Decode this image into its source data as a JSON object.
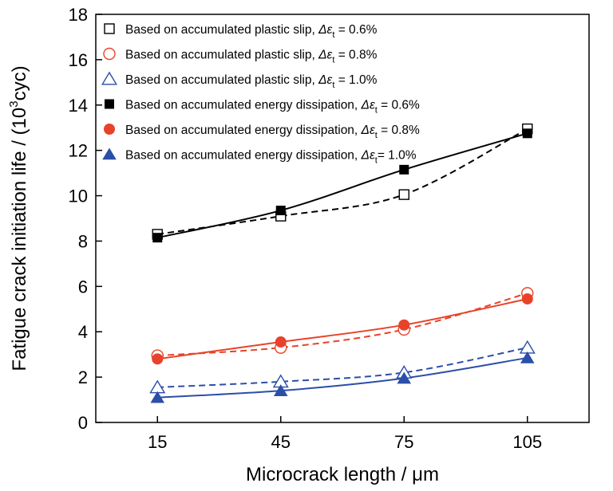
{
  "chart_data": {
    "type": "scatter",
    "xlabel": "Microcrack length / μm",
    "ylabel_prefix": "Fatigue crack initiation life / (10",
    "ylabel_exp": "3",
    "ylabel_suffix": "cyc)",
    "xlim": [
      0,
      120
    ],
    "ylim": [
      0,
      18
    ],
    "xticks": [
      15,
      45,
      75,
      105
    ],
    "yticks": [
      0,
      2,
      4,
      6,
      8,
      10,
      12,
      14,
      16,
      18
    ],
    "grid": false,
    "legend_position": "top-left",
    "series": [
      {
        "legend_prefix": "Based on accumulated plastic slip, ",
        "legend_delta": "Δε",
        "legend_sub": "t",
        "legend_value": " = 0.6%",
        "marker": "square",
        "filled": false,
        "color": "#000000",
        "line_style": "dashed",
        "x": [
          15,
          45,
          75,
          105
        ],
        "y": [
          8.3,
          9.1,
          10.05,
          12.95
        ]
      },
      {
        "legend_prefix": "Based on accumulated plastic slip, ",
        "legend_delta": "Δε",
        "legend_sub": "t",
        "legend_value": " = 0.8%",
        "marker": "circle",
        "filled": false,
        "color": "#e8432a",
        "line_style": "dashed",
        "x": [
          15,
          45,
          75,
          105
        ],
        "y": [
          2.95,
          3.3,
          4.1,
          5.7
        ]
      },
      {
        "legend_prefix": "Based on accumulated plastic slip, ",
        "legend_delta": "Δε",
        "legend_sub": "t",
        "legend_value": " = 1.0%",
        "marker": "triangle",
        "filled": false,
        "color": "#2b4ea8",
        "line_style": "dashed",
        "x": [
          15,
          45,
          75,
          105
        ],
        "y": [
          1.55,
          1.8,
          2.2,
          3.3
        ]
      },
      {
        "legend_prefix": "Based on accumulated energy dissipation, ",
        "legend_delta": "Δε",
        "legend_sub": "t",
        "legend_value": " = 0.6%",
        "marker": "square",
        "filled": true,
        "color": "#000000",
        "line_style": "solid",
        "x": [
          15,
          45,
          75,
          105
        ],
        "y": [
          8.15,
          9.35,
          11.15,
          12.75
        ]
      },
      {
        "legend_prefix": "Based on accumulated energy dissipation, ",
        "legend_delta": "Δε",
        "legend_sub": "t",
        "legend_value": " = 0.8%",
        "marker": "circle",
        "filled": true,
        "color": "#e8432a",
        "line_style": "solid",
        "x": [
          15,
          45,
          75,
          105
        ],
        "y": [
          2.8,
          3.55,
          4.3,
          5.45
        ]
      },
      {
        "legend_prefix": "Based on accumulated energy dissipation, ",
        "legend_delta": "Δε",
        "legend_sub": "t",
        "legend_value": "= 1.0%",
        "marker": "triangle",
        "filled": true,
        "color": "#2b4ea8",
        "line_style": "solid",
        "x": [
          15,
          45,
          75,
          105
        ],
        "y": [
          1.1,
          1.4,
          1.95,
          2.85
        ]
      }
    ]
  }
}
